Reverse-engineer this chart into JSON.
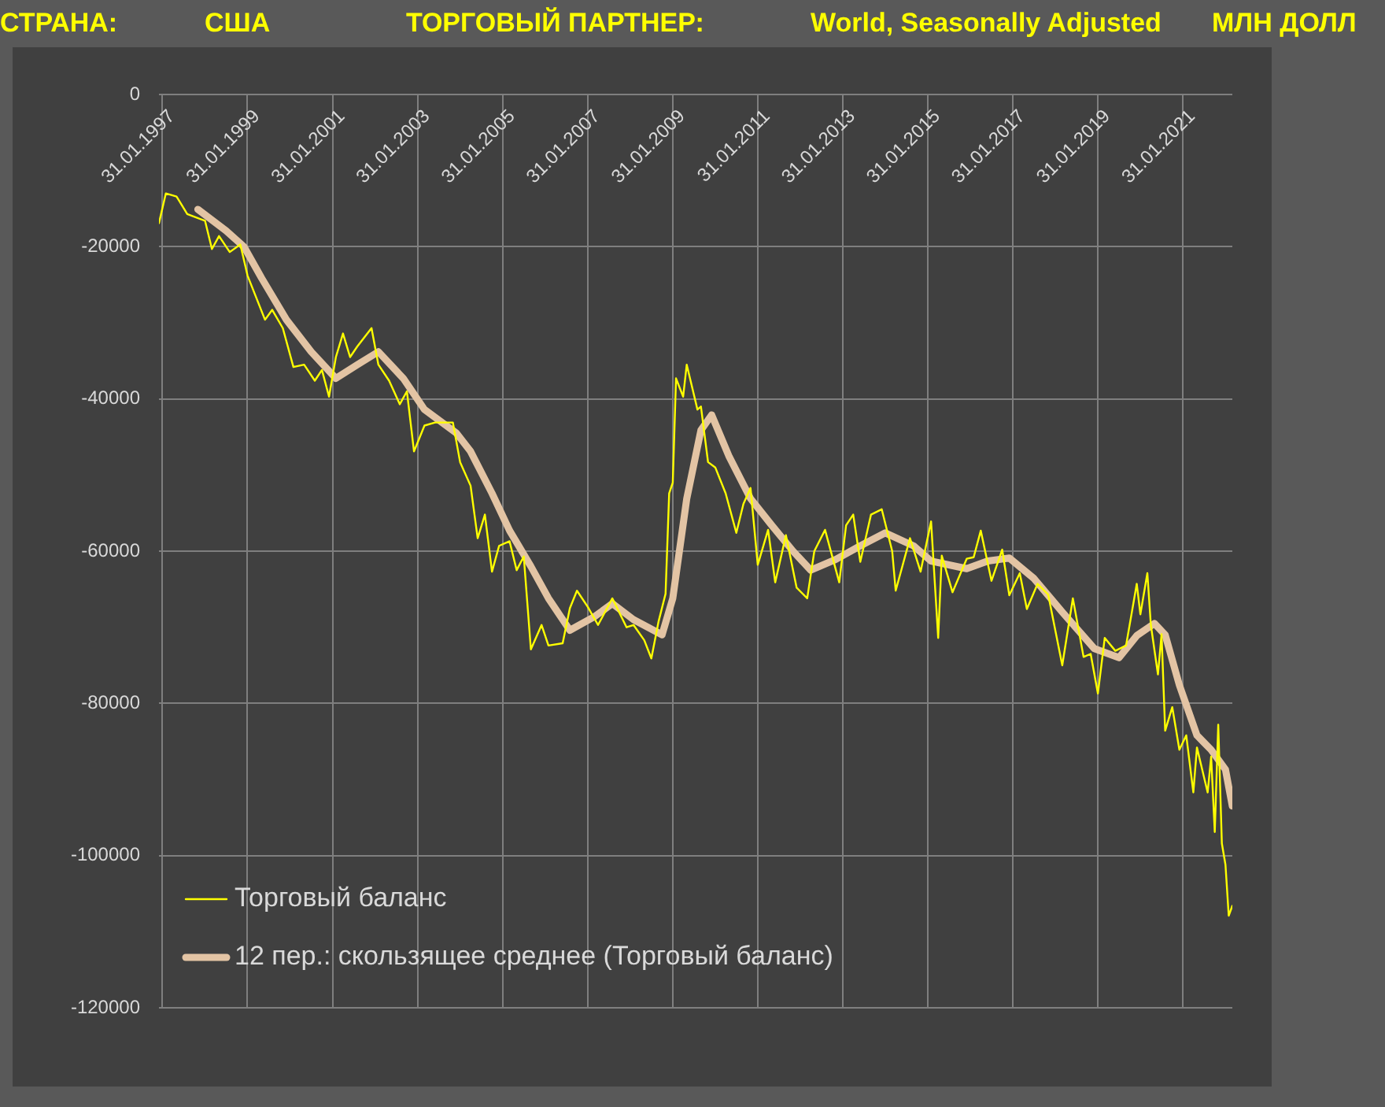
{
  "chart_data": {
    "type": "line",
    "annotations": [
      "СТРАНА:",
      "США",
      "ТОРГОВЫЙ ПАРТНЕР:",
      "World, Seasonally Adjusted",
      "МЛН ДОЛЛ"
    ],
    "xlim": [
      "1997-01",
      "2022-04"
    ],
    "xticks": [
      {
        "value": "1997-01-31",
        "label": "31.01.1997"
      },
      {
        "value": "1999-01-31",
        "label": "31.01.1999"
      },
      {
        "value": "2001-01-31",
        "label": "31.01.2001"
      },
      {
        "value": "2003-01-31",
        "label": "31.01.2003"
      },
      {
        "value": "2005-01-31",
        "label": "31.01.2005"
      },
      {
        "value": "2007-01-31",
        "label": "31.01.2007"
      },
      {
        "value": "2009-01-31",
        "label": "31.01.2009"
      },
      {
        "value": "2011-01-31",
        "label": "31.01.2011"
      },
      {
        "value": "2013-01-31",
        "label": "31.01.2013"
      },
      {
        "value": "2015-01-31",
        "label": "31.01.2015"
      },
      {
        "value": "2017-01-31",
        "label": "31.01.2017"
      },
      {
        "value": "2019-01-31",
        "label": "31.01.2019"
      },
      {
        "value": "2021-01-31",
        "label": "31.01.2021"
      }
    ],
    "ylim": [
      -120000,
      0
    ],
    "yticks": [
      -120000,
      -100000,
      -80000,
      -60000,
      -40000,
      -20000,
      0
    ],
    "grid": true,
    "legend": "bottom left",
    "marker": "none",
    "line_style": "solid",
    "series": [
      {
        "name": "Торговый баланс",
        "color": "#ffff00",
        "x": [
          "1997-01",
          "1997-03",
          "1997-06",
          "1997-09",
          "1998-02",
          "1998-04",
          "1998-06",
          "1998-09",
          "1998-12",
          "1999-02",
          "1999-07",
          "1999-09",
          "1999-12",
          "2000-03",
          "2000-06",
          "2000-09",
          "2000-11",
          "2001-01",
          "2001-03",
          "2001-05",
          "2001-07",
          "2001-09",
          "2002-01",
          "2002-03",
          "2002-06",
          "2002-09",
          "2002-11",
          "2003-01",
          "2003-04",
          "2003-07",
          "2003-12",
          "2004-02",
          "2004-05",
          "2004-07",
          "2004-09",
          "2004-11",
          "2005-01",
          "2005-04",
          "2005-06",
          "2005-08",
          "2005-10",
          "2006-01",
          "2006-03",
          "2006-07",
          "2006-09",
          "2006-11",
          "2007-02",
          "2007-05",
          "2007-09",
          "2008-01",
          "2008-03",
          "2008-06",
          "2008-08",
          "2008-10",
          "2008-12",
          "2009-01",
          "2009-02",
          "2009-03",
          "2009-05",
          "2009-06",
          "2009-09",
          "2009-10",
          "2009-12",
          "2010-02",
          "2010-05",
          "2010-08",
          "2010-10",
          "2010-12",
          "2011-02",
          "2011-05",
          "2011-07",
          "2011-10",
          "2012-01",
          "2012-04",
          "2012-06",
          "2012-09",
          "2013-01",
          "2013-03",
          "2013-05",
          "2013-07",
          "2013-10",
          "2014-01",
          "2014-04",
          "2014-05",
          "2014-09",
          "2014-12",
          "2015-03",
          "2015-05",
          "2015-06",
          "2015-09",
          "2016-01",
          "2016-03",
          "2016-05",
          "2016-08",
          "2016-11",
          "2017-01",
          "2017-04",
          "2017-06",
          "2017-09",
          "2017-12",
          "2018-04",
          "2018-07",
          "2018-10",
          "2018-12",
          "2019-02",
          "2019-04",
          "2019-07",
          "2019-10",
          "2020-01",
          "2020-02",
          "2020-04",
          "2020-05",
          "2020-07",
          "2020-08",
          "2020-09",
          "2020-11",
          "2021-01",
          "2021-03",
          "2021-05",
          "2021-06",
          "2021-09",
          "2021-10",
          "2021-11",
          "2021-12",
          "2022-01",
          "2022-02",
          "2022-03",
          "2022-04"
        ],
        "values": [
          -16900,
          -13000,
          -13400,
          -15700,
          -16600,
          -20300,
          -18600,
          -20700,
          -19700,
          -23800,
          -29600,
          -28300,
          -30700,
          -35800,
          -35500,
          -37600,
          -36200,
          -39700,
          -34500,
          -31400,
          -34500,
          -33100,
          -30700,
          -35500,
          -37600,
          -40700,
          -39000,
          -46900,
          -43500,
          -43100,
          -43100,
          -48300,
          -51400,
          -58300,
          -55200,
          -62700,
          -59300,
          -58700,
          -62500,
          -60700,
          -72900,
          -69700,
          -72400,
          -72100,
          -67500,
          -65200,
          -67300,
          -69700,
          -66200,
          -70000,
          -69700,
          -71700,
          -74100,
          -69300,
          -65600,
          -52400,
          -51000,
          -37300,
          -39700,
          -35500,
          -41400,
          -41000,
          -48300,
          -49000,
          -52400,
          -57600,
          -53800,
          -51700,
          -61800,
          -57200,
          -64100,
          -57900,
          -64800,
          -66200,
          -60000,
          -57200,
          -64100,
          -56600,
          -55200,
          -61400,
          -55200,
          -54500,
          -60000,
          -65200,
          -58300,
          -62700,
          -56100,
          -71400,
          -60600,
          -65400,
          -61000,
          -60800,
          -57300,
          -63900,
          -59800,
          -65800,
          -62900,
          -67600,
          -64300,
          -65700,
          -75000,
          -66200,
          -73900,
          -73500,
          -78700,
          -71400,
          -73100,
          -72400,
          -64300,
          -68300,
          -62900,
          -69700,
          -76200,
          -70900,
          -83600,
          -80500,
          -86100,
          -84200,
          -91700,
          -85800,
          -91700,
          -87000,
          -96900,
          -82800,
          -98400,
          -101200,
          -107900,
          -106600
        ]
      },
      {
        "name": "12 пер.: скользящее среднее (Торговый баланс)",
        "color": "#e3c4a4",
        "x": [
          "1997-12",
          "1998-08",
          "1999-01",
          "1999-06",
          "2000-01",
          "2000-08",
          "2001-03",
          "2001-09",
          "2002-03",
          "2002-10",
          "2003-04",
          "2004-01",
          "2004-05",
          "2004-11",
          "2005-04",
          "2005-10",
          "2006-03",
          "2006-09",
          "2007-04",
          "2007-09",
          "2008-03",
          "2008-11",
          "2009-02",
          "2009-06",
          "2009-10",
          "2010-01",
          "2010-06",
          "2010-12",
          "2011-06",
          "2011-12",
          "2012-05",
          "2012-12",
          "2013-07",
          "2014-02",
          "2014-10",
          "2015-03",
          "2016-01",
          "2016-07",
          "2017-01",
          "2017-08",
          "2018-04",
          "2019-01",
          "2019-08",
          "2020-01",
          "2020-06",
          "2020-09",
          "2021-01",
          "2021-06",
          "2021-10",
          "2022-02",
          "2022-04"
        ],
        "values": [
          -15100,
          -17900,
          -20000,
          -24100,
          -29600,
          -33800,
          -37300,
          -35500,
          -33800,
          -37300,
          -41400,
          -44500,
          -46900,
          -52400,
          -57300,
          -62000,
          -66200,
          -70400,
          -68600,
          -66900,
          -69000,
          -71000,
          -66200,
          -53100,
          -44100,
          -42100,
          -47600,
          -53100,
          -56600,
          -60000,
          -62500,
          -61100,
          -59300,
          -57600,
          -59300,
          -61300,
          -62300,
          -61300,
          -60900,
          -63600,
          -68000,
          -72800,
          -74000,
          -71100,
          -69500,
          -71000,
          -77600,
          -84200,
          -86100,
          -88700,
          -93500
        ]
      }
    ]
  }
}
